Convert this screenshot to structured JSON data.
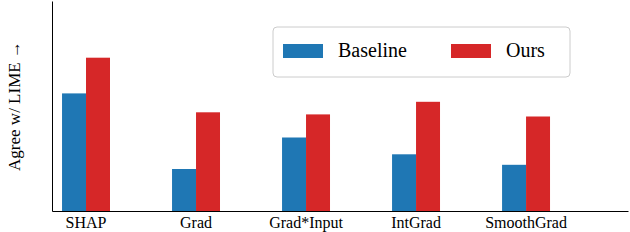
{
  "chart_data": {
    "type": "bar",
    "y_label": "Agree w/ LIME →",
    "categories": [
      "SHAP",
      "Grad",
      "Grad*Input",
      "IntGrad",
      "SmoothGrad"
    ],
    "series": [
      {
        "name": "Baseline",
        "color": "#1f77b4",
        "values": [
          56,
          20,
          35,
          27,
          22
        ]
      },
      {
        "name": "Ours",
        "color": "#d62728",
        "values": [
          73,
          47,
          46,
          52,
          45
        ]
      }
    ],
    "ylim": [
      0,
      100
    ],
    "tick_labels": "x",
    "grid": false,
    "legend": "top"
  }
}
